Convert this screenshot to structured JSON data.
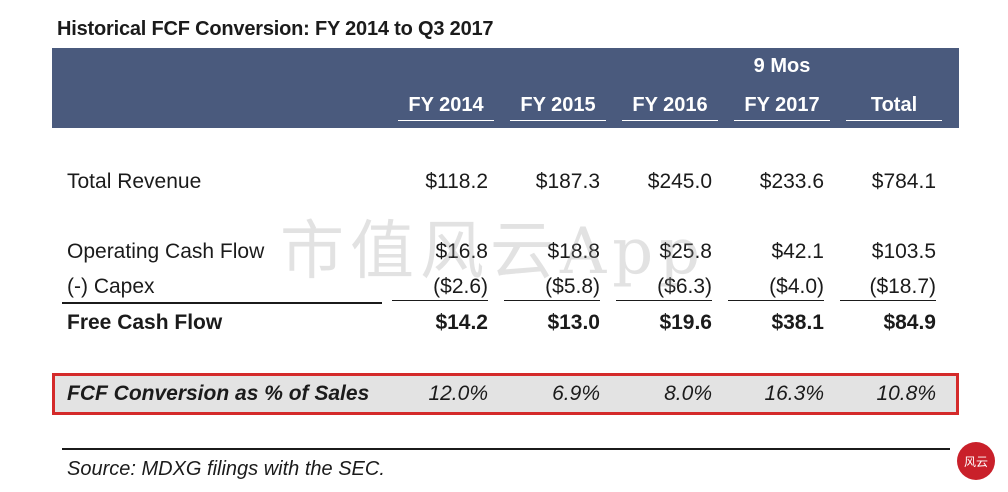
{
  "title": "Historical FCF Conversion: FY 2014 to Q3 2017",
  "header": {
    "super_label": "9 Mos",
    "columns": [
      "FY 2014",
      "FY 2015",
      "FY 2016",
      "FY 2017",
      "Total"
    ]
  },
  "rows": [
    {
      "label": "Total Revenue",
      "values": [
        "$118.2",
        "$187.3",
        "$245.0",
        "$233.6",
        "$784.1"
      ]
    },
    {
      "label": "Operating Cash Flow",
      "values": [
        "$16.8",
        "$18.8",
        "$25.8",
        "$42.1",
        "$103.5"
      ]
    },
    {
      "label": "(-) Capex",
      "values": [
        "($2.6)",
        "($5.8)",
        "($6.3)",
        "($4.0)",
        "($18.7)"
      ]
    },
    {
      "label": "Free Cash Flow",
      "values": [
        "$14.2",
        "$13.0",
        "$19.6",
        "$38.1",
        "$84.9"
      ]
    }
  ],
  "highlight": {
    "label": "FCF Conversion as % of Sales",
    "values": [
      "12.0%",
      "6.9%",
      "8.0%",
      "16.3%",
      "10.8%"
    ],
    "border_color": "#d42a2a"
  },
  "source": "Source: MDXG filings with the SEC.",
  "watermark": "市值风云App",
  "seal_text": "风云",
  "colors": {
    "header_bg": "#4a5a7d",
    "highlight_bg": "#e3e3e3"
  }
}
